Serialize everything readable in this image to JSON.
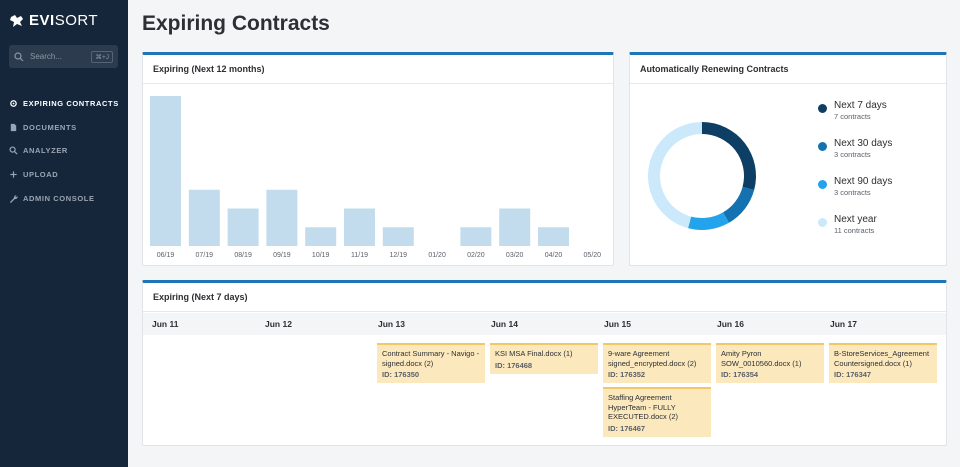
{
  "app": {
    "logo_bold": "EVI",
    "logo_rest": "SORT"
  },
  "search": {
    "placeholder": "Search...",
    "shortcut": "⌘+J"
  },
  "nav": [
    {
      "label": "EXPIRING CONTRACTS",
      "icon": "gear-icon",
      "active": true
    },
    {
      "label": "DOCUMENTS",
      "icon": "document-icon",
      "active": false
    },
    {
      "label": "ANALYZER",
      "icon": "search-icon",
      "active": false
    },
    {
      "label": "UPLOAD",
      "icon": "plus-icon",
      "active": false
    },
    {
      "label": "ADMIN CONSOLE",
      "icon": "wrench-icon",
      "active": false
    }
  ],
  "page_title": "Expiring Contracts",
  "expiring_12": {
    "title": "Expiring (Next 12 months)"
  },
  "chart_data": {
    "type": "bar",
    "categories": [
      "06/19",
      "07/19",
      "08/19",
      "09/19",
      "10/19",
      "11/19",
      "12/19",
      "01/20",
      "02/20",
      "03/20",
      "04/20",
      "05/20"
    ],
    "values": [
      8,
      3,
      2,
      3,
      1,
      2,
      1,
      0,
      1,
      2,
      1,
      0
    ],
    "ylim": [
      0,
      8
    ],
    "color": "#c2dced",
    "grid": false
  },
  "renewing": {
    "title": "Automatically Renewing Contracts",
    "legend": [
      {
        "label": "Next 7 days",
        "sub": "7 contracts",
        "value": 7,
        "color": "#0d3e63"
      },
      {
        "label": "Next 30 days",
        "sub": "3 contracts",
        "value": 3,
        "color": "#1472b0"
      },
      {
        "label": "Next 90 days",
        "sub": "3 contracts",
        "value": 3,
        "color": "#23a3eb"
      },
      {
        "label": "Next year",
        "sub": "11 contracts",
        "value": 11,
        "color": "#cbe9fa"
      }
    ]
  },
  "expiring_7": {
    "title": "Expiring (Next 7 days)",
    "days": [
      {
        "label": "Jun 11",
        "contracts": []
      },
      {
        "label": "Jun 12",
        "contracts": []
      },
      {
        "label": "Jun 13",
        "contracts": [
          {
            "name": "Contract Summary - Navigo - signed.docx (2)",
            "id": "ID: 176350"
          }
        ]
      },
      {
        "label": "Jun 14",
        "contracts": [
          {
            "name": "KSI MSA Final.docx (1)",
            "id": "ID: 176468"
          }
        ]
      },
      {
        "label": "Jun 15",
        "contracts": [
          {
            "name": "9-ware Agreement signed_encrypted.docx (2)",
            "id": "ID: 176352"
          },
          {
            "name": "Staffing Agreement HyperTeam - FULLY EXECUTED.docx (2)",
            "id": "ID: 176467"
          }
        ]
      },
      {
        "label": "Jun 16",
        "contracts": [
          {
            "name": "Amity Pyron SOW_0010560.docx (1)",
            "id": "ID: 176354"
          }
        ]
      },
      {
        "label": "Jun 17",
        "contracts": [
          {
            "name": "B-StoreServices_Agreement Countersigned.docx (1)",
            "id": "ID: 176347"
          }
        ]
      }
    ]
  }
}
